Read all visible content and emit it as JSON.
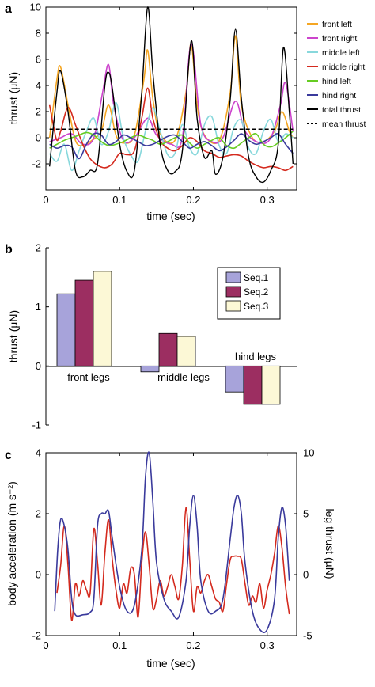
{
  "panels": {
    "a": {
      "letter": "a"
    },
    "b": {
      "letter": "b"
    },
    "c": {
      "letter": "c"
    }
  },
  "chart_data": [
    {
      "type": "line",
      "xlabel": "time (sec)",
      "ylabel": "thrust (µN)",
      "xlim": [
        0,
        0.34
      ],
      "ylim": [
        -4,
        10
      ],
      "xticks": [
        0,
        0.1,
        0.2,
        0.3
      ],
      "xtick_labels": [
        "0",
        "0.1",
        "0.2",
        "0.3"
      ],
      "yticks": [
        -2,
        0,
        2,
        4,
        6,
        8,
        10
      ],
      "ytick_labels": [
        "-2",
        "0",
        "2",
        "4",
        "6",
        "8",
        "10"
      ],
      "legend_position": "right",
      "series": [
        {
          "name": "front left",
          "color": "#F5A623",
          "x": [
            0.005,
            0.015,
            0.02,
            0.03,
            0.04,
            0.05,
            0.06,
            0.075,
            0.085,
            0.095,
            0.105,
            0.12,
            0.133,
            0.138,
            0.145,
            0.155,
            0.175,
            0.19,
            0.197,
            0.205,
            0.215,
            0.235,
            0.25,
            0.257,
            0.265,
            0.28,
            0.295,
            0.31,
            0.32,
            0.33,
            0.335
          ],
          "y": [
            0,
            4.5,
            5.4,
            2.5,
            -0.2,
            -0.6,
            -0.3,
            0.5,
            2.5,
            0.2,
            -0.4,
            0.2,
            4.5,
            6.7,
            3,
            0.3,
            -0.2,
            3.5,
            7.2,
            2.5,
            0.2,
            -0.2,
            3.5,
            7.8,
            2.5,
            0,
            -0.3,
            0.5,
            2,
            0.5,
            0
          ]
        },
        {
          "name": "front right",
          "color": "#CC44CC",
          "x": [
            0.005,
            0.02,
            0.035,
            0.05,
            0.065,
            0.077,
            0.085,
            0.092,
            0.105,
            0.12,
            0.138,
            0.15,
            0.17,
            0.185,
            0.197,
            0.21,
            0.225,
            0.24,
            0.257,
            0.27,
            0.29,
            0.305,
            0.318,
            0.325,
            0.335
          ],
          "y": [
            -0.3,
            0,
            0.3,
            -0.5,
            0,
            3.5,
            5.6,
            2.5,
            -0.2,
            0,
            1.5,
            0.2,
            -0.5,
            0,
            7.2,
            1,
            -0.3,
            0,
            2.8,
            0.5,
            -0.4,
            0,
            2.5,
            4.2,
            0.5
          ]
        },
        {
          "name": "middle left",
          "color": "#88D8DC",
          "x": [
            0.005,
            0.015,
            0.025,
            0.035,
            0.045,
            0.055,
            0.065,
            0.075,
            0.085,
            0.095,
            0.105,
            0.115,
            0.125,
            0.135,
            0.145,
            0.155,
            0.165,
            0.175,
            0.185,
            0.195,
            0.205,
            0.215,
            0.225,
            0.235,
            0.245,
            0.255,
            0.265,
            0.275,
            0.285,
            0.295,
            0.305,
            0.315,
            0.325,
            0.335
          ],
          "y": [
            -1.2,
            -1.8,
            -0.5,
            -2.5,
            -1,
            0.5,
            1.5,
            -0.5,
            0.5,
            2.7,
            0,
            -1.3,
            -1.8,
            0.5,
            2.3,
            0.5,
            -1.3,
            -1.2,
            1,
            -0.8,
            -1.2,
            1,
            1.6,
            -0.6,
            -1.2,
            0.8,
            1.3,
            -0.8,
            -1.2,
            0.5,
            1.4,
            -0.3,
            0.3,
            0
          ]
        },
        {
          "name": "middle right",
          "color": "#D42A1E",
          "x": [
            0.005,
            0.01,
            0.015,
            0.02,
            0.03,
            0.04,
            0.05,
            0.06,
            0.07,
            0.08,
            0.09,
            0.1,
            0.11,
            0.12,
            0.13,
            0.138,
            0.145,
            0.155,
            0.165,
            0.175,
            0.185,
            0.195,
            0.205,
            0.215,
            0.225,
            0.235,
            0.245,
            0.255,
            0.265,
            0.275,
            0.285,
            0.295,
            0.305,
            0.315,
            0.325,
            0.335
          ],
          "y": [
            2.5,
            1,
            -0.2,
            0.5,
            2.3,
            1,
            -0.5,
            -1.6,
            -2.1,
            -2.3,
            -2,
            -1.2,
            -1.3,
            -1,
            1.5,
            3.8,
            1.5,
            -0.2,
            -0.8,
            -1,
            -0.6,
            0,
            -0.3,
            -1,
            -1.2,
            -1.5,
            -1.4,
            -1.3,
            -1.4,
            -1.8,
            -2.1,
            -2.3,
            -2.2,
            -2.3,
            -2.5,
            -2.2
          ]
        },
        {
          "name": "hind left",
          "color": "#66CC22",
          "x": [
            0.005,
            0.015,
            0.025,
            0.035,
            0.045,
            0.055,
            0.065,
            0.075,
            0.085,
            0.095,
            0.105,
            0.115,
            0.125,
            0.135,
            0.145,
            0.155,
            0.165,
            0.175,
            0.185,
            0.195,
            0.205,
            0.215,
            0.225,
            0.235,
            0.245,
            0.255,
            0.265,
            0.275,
            0.285,
            0.295,
            0.305,
            0.315,
            0.325,
            0.335
          ],
          "y": [
            -0.8,
            -0.5,
            -0.2,
            0,
            0.2,
            0.4,
            0.2,
            -0.3,
            -0.6,
            -0.5,
            -0.3,
            0,
            0.2,
            0,
            -0.2,
            -0.5,
            -0.3,
            0,
            0.2,
            -0.4,
            -0.8,
            -0.5,
            -0.2,
            0,
            -0.6,
            -0.8,
            -0.4,
            0,
            0.3,
            -0.5,
            -0.7,
            -0.4,
            0,
            0.5
          ]
        },
        {
          "name": "hind right",
          "color": "#3A3A9C",
          "x": [
            0.005,
            0.015,
            0.025,
            0.035,
            0.045,
            0.055,
            0.065,
            0.075,
            0.085,
            0.095,
            0.105,
            0.115,
            0.125,
            0.135,
            0.145,
            0.155,
            0.165,
            0.175,
            0.185,
            0.195,
            0.205,
            0.215,
            0.225,
            0.235,
            0.245,
            0.255,
            0.265,
            0.275,
            0.285,
            0.295,
            0.305,
            0.315,
            0.325,
            0.335
          ],
          "y": [
            -0.5,
            -0.8,
            -0.6,
            -0.7,
            -1.6,
            -0.5,
            0.3,
            0.2,
            -0.5,
            -0.3,
            0.2,
            0,
            -0.3,
            -0.6,
            -0.5,
            -0.2,
            0.1,
            0.2,
            -0.3,
            -0.8,
            -0.5,
            -0.3,
            -0.6,
            -1,
            -0.7,
            -0.2,
            0.3,
            -0.2,
            -0.5,
            -0.3,
            0,
            0.3,
            -0.5,
            -1.2
          ]
        },
        {
          "name": "total thrust",
          "color": "#000000",
          "x": [
            0.005,
            0.015,
            0.02,
            0.03,
            0.04,
            0.05,
            0.06,
            0.07,
            0.08,
            0.085,
            0.09,
            0.1,
            0.11,
            0.12,
            0.13,
            0.138,
            0.145,
            0.155,
            0.165,
            0.175,
            0.185,
            0.197,
            0.205,
            0.215,
            0.225,
            0.23,
            0.24,
            0.25,
            0.257,
            0.265,
            0.275,
            0.285,
            0.295,
            0.305,
            0.315,
            0.322,
            0.33,
            0.335
          ],
          "y": [
            -2.2,
            3.5,
            5.1,
            2,
            -2.5,
            -3,
            -2.5,
            -2,
            4,
            5,
            3.8,
            -0.5,
            -2.6,
            -2.5,
            3.5,
            10,
            5,
            -0.5,
            -2.5,
            -2.6,
            -1,
            7.4,
            1.5,
            -1.5,
            -1,
            -2.8,
            -1.5,
            3,
            8.3,
            3,
            -1.5,
            -3,
            -3.4,
            -2.5,
            -0.5,
            6.9,
            2,
            -2
          ]
        },
        {
          "name": "mean thrust",
          "color": "#000000",
          "dashed": true,
          "x": [
            0.005,
            0.335
          ],
          "y": [
            0.65,
            0.65
          ]
        }
      ]
    },
    {
      "type": "bar",
      "ylabel": "thrust (µN)",
      "ylim": [
        -1,
        2
      ],
      "yticks": [
        -1,
        0,
        1,
        2
      ],
      "ytick_labels": [
        "-1",
        "0",
        "1",
        "2"
      ],
      "categories": [
        "front legs",
        "middle legs",
        "hind legs"
      ],
      "legend_position": "top-right",
      "series": [
        {
          "name": "Seq.1",
          "color": "#A7A3DA",
          "values": [
            1.22,
            -0.1,
            -0.44
          ]
        },
        {
          "name": "Seq.2",
          "color": "#9C2E61",
          "values": [
            1.45,
            0.55,
            -0.65
          ]
        },
        {
          "name": "Seq.3",
          "color": "#FCF8D6",
          "values": [
            1.6,
            0.5,
            -0.65
          ]
        }
      ]
    },
    {
      "type": "line",
      "xlabel": "time (sec)",
      "ylabel": "body acceleration (m s⁻²)",
      "ylabel_color": "#D42A1E",
      "y2label": "leg thrust (µN)",
      "y2label_color": "#3A3A9C",
      "xlim": [
        0,
        0.34
      ],
      "ylim": [
        -2,
        4
      ],
      "y2lim": [
        -5,
        10
      ],
      "xticks": [
        0,
        0.1,
        0.2,
        0.3
      ],
      "xtick_labels": [
        "0",
        "0.1",
        "0.2",
        "0.3"
      ],
      "yticks": [
        -2,
        0,
        2,
        4
      ],
      "ytick_labels": [
        "-2",
        "0",
        "2",
        "4"
      ],
      "y2ticks": [
        -5,
        0,
        5,
        10
      ],
      "y2tick_labels": [
        "-5",
        "0",
        "5",
        "10"
      ],
      "series": [
        {
          "name": "body acceleration",
          "axis": "left",
          "color": "#D42A1E",
          "x": [
            0.015,
            0.02,
            0.025,
            0.03,
            0.035,
            0.04,
            0.045,
            0.05,
            0.055,
            0.06,
            0.065,
            0.07,
            0.075,
            0.08,
            0.085,
            0.09,
            0.095,
            0.1,
            0.105,
            0.11,
            0.115,
            0.12,
            0.125,
            0.13,
            0.135,
            0.14,
            0.145,
            0.15,
            0.155,
            0.16,
            0.165,
            0.17,
            0.175,
            0.18,
            0.185,
            0.19,
            0.195,
            0.2,
            0.205,
            0.21,
            0.215,
            0.22,
            0.225,
            0.23,
            0.235,
            0.24,
            0.245,
            0.25,
            0.255,
            0.26,
            0.265,
            0.27,
            0.275,
            0.28,
            0.285,
            0.29,
            0.295,
            0.3,
            0.305,
            0.31,
            0.315,
            0.32,
            0.325,
            0.33
          ],
          "y": [
            -0.6,
            0.3,
            1.6,
            0.3,
            -1.5,
            -0.3,
            -0.7,
            -0.2,
            -0.5,
            -0.6,
            1.5,
            0.4,
            -1,
            0.7,
            1.8,
            0.5,
            -0.5,
            -1.1,
            -0.3,
            -0.6,
            0.2,
            0,
            -1.4,
            0.4,
            1.4,
            0.3,
            -1.1,
            -0.8,
            -0.2,
            -0.7,
            -0.4,
            0,
            -0.4,
            -0.8,
            0.3,
            2.2,
            0.5,
            -1.2,
            -0.4,
            -0.6,
            -0.2,
            0,
            -0.4,
            -0.8,
            -0.9,
            -1.2,
            -0.3,
            0.5,
            0.6,
            0.6,
            0.5,
            -0.3,
            -1,
            -0.7,
            -0.9,
            -0.3,
            -1.1,
            -0.5,
            0,
            0.7,
            1.6,
            0.9,
            -0.4,
            -1.3
          ]
        },
        {
          "name": "leg thrust",
          "axis": "right",
          "color": "#3A3A9C",
          "x": [
            0.012,
            0.016,
            0.02,
            0.025,
            0.03,
            0.035,
            0.04,
            0.05,
            0.06,
            0.065,
            0.07,
            0.075,
            0.08,
            0.085,
            0.09,
            0.1,
            0.11,
            0.12,
            0.13,
            0.135,
            0.14,
            0.145,
            0.15,
            0.16,
            0.17,
            0.18,
            0.19,
            0.195,
            0.2,
            0.205,
            0.21,
            0.22,
            0.23,
            0.24,
            0.25,
            0.255,
            0.26,
            0.265,
            0.27,
            0.28,
            0.29,
            0.3,
            0.31,
            0.315,
            0.32,
            0.325,
            0.33
          ],
          "y": [
            -3,
            2,
            4.5,
            4,
            2,
            -2,
            -3.3,
            -3.3,
            -3.1,
            -2,
            4,
            5,
            5,
            5.2,
            3,
            -1,
            -3,
            -2.5,
            2,
            8,
            10,
            6,
            1,
            -2,
            -3,
            -3.5,
            -0.5,
            4,
            6.5,
            4,
            -0.5,
            -3,
            -3,
            -2,
            3,
            5.5,
            6.5,
            5,
            1,
            -3,
            -4.5,
            -4.5,
            -2,
            3,
            5.5,
            4,
            -0.5
          ]
        }
      ]
    }
  ]
}
